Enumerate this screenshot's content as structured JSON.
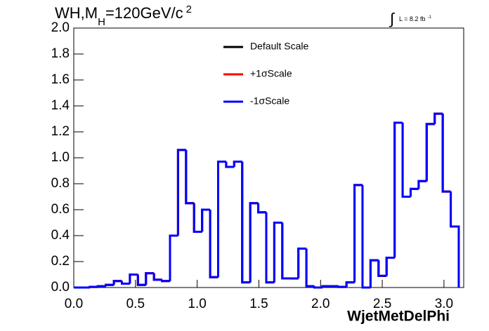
{
  "chart_data": {
    "type": "histogram",
    "title": {
      "main": "WH,M",
      "sub": "H",
      "rest": "=120GeV/c",
      "sup": "2"
    },
    "annotation": {
      "integral": "∫",
      "text": "L = 8.2 fb",
      "sup": "-1"
    },
    "xlabel": "WjetMetDelPhi",
    "bins": [
      0,
      0.065,
      0.13,
      0.195,
      0.26,
      0.325,
      0.39,
      0.455,
      0.52,
      0.585,
      0.65,
      0.715,
      0.78,
      0.845,
      0.91,
      0.975,
      1.04,
      1.105,
      1.17,
      1.235,
      1.3,
      1.365,
      1.43,
      1.495,
      1.56,
      1.625,
      1.69,
      1.755,
      1.82,
      1.885,
      1.95,
      2.015,
      2.08,
      2.145,
      2.21,
      2.275,
      2.34,
      2.405,
      2.47,
      2.535,
      2.6,
      2.665,
      2.73,
      2.795,
      2.86,
      2.925,
      2.99,
      3.055,
      3.12
    ],
    "series": [
      {
        "name": "Default Scale",
        "color": "#000000",
        "values": [
          0,
          0,
          0.005,
          0.01,
          0.02,
          0.05,
          0.03,
          0.1,
          0.02,
          0.11,
          0.06,
          0.05,
          0.4,
          1.06,
          0.65,
          0.43,
          0.6,
          0.08,
          0.97,
          0.93,
          0.97,
          0.04,
          0.65,
          0.58,
          0.04,
          0.5,
          0.07,
          0.07,
          0.3,
          0.01,
          0,
          0.01,
          0.01,
          0.005,
          0.04,
          0.79,
          0,
          0.21,
          0.09,
          0.23,
          1.27,
          0.7,
          0.76,
          0.82,
          1.26,
          1.34,
          0.74,
          0.47
        ]
      },
      {
        "name": "+1σScale",
        "color": "#ff0000",
        "values": [
          0,
          0,
          0.005,
          0.01,
          0.02,
          0.05,
          0.03,
          0.1,
          0.02,
          0.11,
          0.06,
          0.05,
          0.4,
          1.06,
          0.65,
          0.43,
          0.6,
          0.08,
          0.97,
          0.93,
          0.97,
          0.04,
          0.65,
          0.58,
          0.04,
          0.5,
          0.07,
          0.07,
          0.3,
          0.01,
          0,
          0.01,
          0.01,
          0.005,
          0.04,
          0.79,
          0,
          0.21,
          0.09,
          0.23,
          1.27,
          0.7,
          0.76,
          0.82,
          1.26,
          1.34,
          0.74,
          0.47
        ]
      },
      {
        "name": "-1σScale",
        "color": "#0000ff",
        "values": [
          0,
          0,
          0.005,
          0.01,
          0.02,
          0.05,
          0.03,
          0.1,
          0.02,
          0.11,
          0.06,
          0.05,
          0.4,
          1.06,
          0.65,
          0.43,
          0.6,
          0.08,
          0.97,
          0.93,
          0.97,
          0.04,
          0.65,
          0.58,
          0.04,
          0.5,
          0.07,
          0.07,
          0.3,
          0.01,
          0,
          0.01,
          0.01,
          0.005,
          0.04,
          0.79,
          0,
          0.21,
          0.09,
          0.23,
          1.27,
          0.7,
          0.76,
          0.82,
          1.26,
          1.34,
          0.74,
          0.47
        ]
      }
    ],
    "xlim": [
      0,
      3.16
    ],
    "xticks": [
      {
        "value": 0,
        "label": "0.0"
      },
      0.5,
      {
        "value": 1,
        "label": "1.0"
      },
      1.5,
      {
        "value": 2,
        "label": "2.0"
      },
      2.5,
      {
        "value": 3,
        "label": "3.0"
      }
    ],
    "ylim": [
      0,
      2
    ],
    "yticks": [
      {
        "value": 0,
        "label": "0.0"
      },
      0.2,
      0.4,
      0.6,
      0.8,
      {
        "value": 1,
        "label": "1.0"
      },
      1.2,
      1.4,
      1.6,
      1.8,
      {
        "value": 2,
        "label": "2.0"
      }
    ]
  }
}
